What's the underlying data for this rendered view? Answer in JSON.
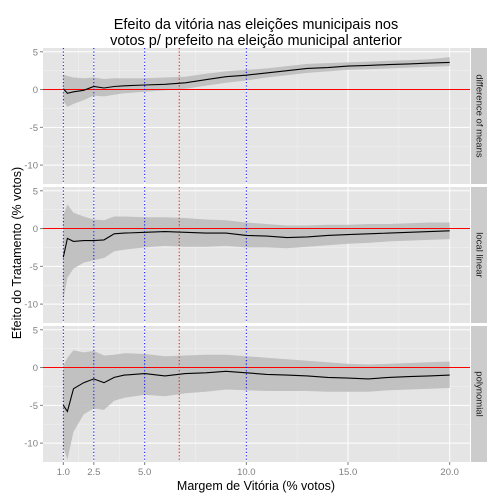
{
  "chart_data": {
    "type": "line",
    "title_line1": "Efeito da vitória nas eleições municipais nos",
    "title_line2": "votos p/ prefeito na eleição municipal anterior",
    "xlabel": "Margem de Vitória (% votos)",
    "ylabel": "Efeito do Tratamento (% votos)",
    "xlim": [
      0.0,
      21.0
    ],
    "ylim": [
      -12.5,
      5.5
    ],
    "x_ticks": [
      1.0,
      2.5,
      5.0,
      10.0,
      15.0,
      20.0
    ],
    "x_tick_labels": [
      "1.0",
      "2.5",
      "5.0",
      "10.0",
      "15.0",
      "20.0"
    ],
    "y_ticks": [
      -10,
      -5,
      0,
      5
    ],
    "y_tick_labels": [
      "-10",
      "-5",
      "0",
      "5"
    ],
    "hline": 0,
    "hline_color": "#ff0000",
    "vlines_blue": [
      1.0,
      2.5,
      5.0,
      10.0
    ],
    "vline_blue_color": "#0000ff",
    "vlines_red": [
      6.7
    ],
    "vline_red_color": "#ff0000",
    "colors": {
      "panel_bg": "#e5e5e5",
      "strip_bg": "#cccccc",
      "grid_major": "#ffffff",
      "ribbon": "#bdbdbd",
      "line": "#000000"
    },
    "panels": [
      {
        "strip": "difference of means",
        "x": [
          1.0,
          1.2,
          1.5,
          2.0,
          2.5,
          3.0,
          3.5,
          4.0,
          5.0,
          6.0,
          7.0,
          8.0,
          9.0,
          10.0,
          11.0,
          12.0,
          13.0,
          14.0,
          15.0,
          16.0,
          17.0,
          18.0,
          19.0,
          20.0
        ],
        "y": [
          0.1,
          -0.5,
          -0.3,
          -0.1,
          0.4,
          0.2,
          0.4,
          0.5,
          0.6,
          0.7,
          0.9,
          1.3,
          1.7,
          1.9,
          2.2,
          2.5,
          2.8,
          2.9,
          3.1,
          3.2,
          3.3,
          3.4,
          3.5,
          3.6
        ],
        "lower": [
          -1.5,
          -2.3,
          -1.9,
          -1.4,
          -0.8,
          -0.9,
          -0.7,
          -0.5,
          -0.3,
          -0.1,
          0.1,
          0.5,
          0.9,
          1.2,
          1.6,
          1.9,
          2.2,
          2.4,
          2.6,
          2.7,
          2.8,
          2.9,
          3.0,
          3.1
        ],
        "upper": [
          2.0,
          1.8,
          1.6,
          1.5,
          1.6,
          1.4,
          1.5,
          1.5,
          1.5,
          1.6,
          1.7,
          2.1,
          2.4,
          2.6,
          2.8,
          3.1,
          3.4,
          3.5,
          3.6,
          3.7,
          3.8,
          3.9,
          4.0,
          4.3
        ]
      },
      {
        "strip": "local linear",
        "x": [
          1.0,
          1.2,
          1.5,
          2.0,
          2.5,
          3.0,
          3.5,
          4.0,
          5.0,
          6.0,
          7.0,
          8.0,
          9.0,
          10.0,
          11.0,
          12.0,
          13.0,
          14.0,
          15.0,
          16.0,
          17.0,
          18.0,
          19.0,
          20.0
        ],
        "y": [
          -3.8,
          -1.3,
          -1.7,
          -1.6,
          -1.6,
          -1.5,
          -0.7,
          -0.6,
          -0.5,
          -0.4,
          -0.5,
          -0.6,
          -0.6,
          -0.9,
          -1.0,
          -1.2,
          -1.1,
          -0.9,
          -0.8,
          -0.7,
          -0.6,
          -0.5,
          -0.4,
          -0.3
        ],
        "lower": [
          -9.5,
          -6.5,
          -5.3,
          -4.5,
          -4.2,
          -3.9,
          -3.0,
          -2.8,
          -2.5,
          -2.3,
          -2.4,
          -2.4,
          -2.3,
          -2.5,
          -2.5,
          -2.6,
          -2.4,
          -2.2,
          -2.0,
          -1.9,
          -1.7,
          -1.6,
          -1.5,
          -1.4
        ],
        "upper": [
          1.8,
          3.2,
          2.1,
          1.6,
          1.2,
          1.1,
          1.6,
          1.6,
          1.5,
          1.5,
          1.4,
          1.2,
          1.1,
          0.8,
          0.6,
          0.4,
          0.4,
          0.5,
          0.5,
          0.6,
          0.6,
          0.7,
          0.8,
          0.8
        ]
      },
      {
        "strip": "polynomial",
        "x": [
          1.0,
          1.2,
          1.5,
          2.0,
          2.5,
          3.0,
          3.5,
          4.0,
          5.0,
          6.0,
          7.0,
          8.0,
          9.0,
          10.0,
          11.0,
          12.0,
          13.0,
          14.0,
          15.0,
          16.0,
          17.0,
          18.0,
          19.0,
          20.0
        ],
        "y": [
          -5.0,
          -5.8,
          -2.8,
          -2.0,
          -1.5,
          -2.0,
          -1.3,
          -1.0,
          -0.8,
          -1.1,
          -0.8,
          -0.7,
          -0.5,
          -0.7,
          -0.9,
          -1.0,
          -1.1,
          -1.3,
          -1.4,
          -1.5,
          -1.3,
          -1.2,
          -1.1,
          -1.0
        ],
        "lower": [
          -10.5,
          -12.2,
          -8.5,
          -6.2,
          -5.4,
          -5.6,
          -4.4,
          -4.0,
          -3.6,
          -3.8,
          -3.4,
          -3.2,
          -2.9,
          -3.0,
          -3.1,
          -3.1,
          -3.1,
          -3.2,
          -3.2,
          -3.2,
          -3.0,
          -2.9,
          -2.8,
          -2.7
        ],
        "upper": [
          0.2,
          1.3,
          2.3,
          2.0,
          2.2,
          1.6,
          1.7,
          1.9,
          1.8,
          1.5,
          1.6,
          1.7,
          1.7,
          1.5,
          1.3,
          1.1,
          0.9,
          0.7,
          0.5,
          0.4,
          0.5,
          0.6,
          0.7,
          0.8
        ]
      }
    ]
  }
}
